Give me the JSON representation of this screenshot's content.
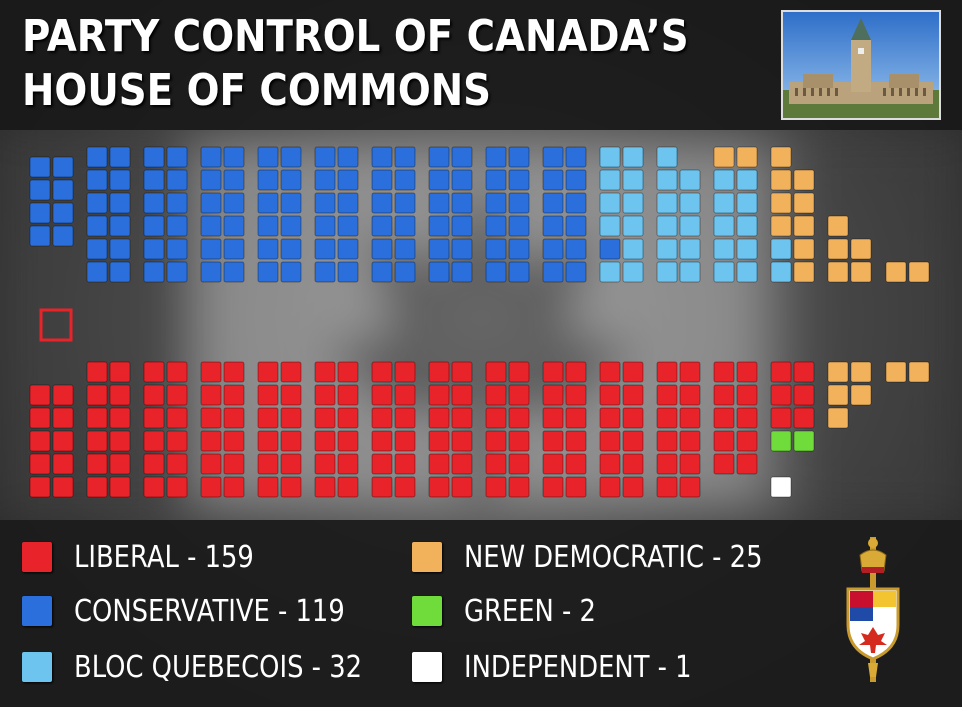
{
  "title": {
    "line1": "PARTY CONTROL OF CANADA’S",
    "line2": "HOUSE OF COMMONS"
  },
  "colors": {
    "liberal": "#e8232a",
    "conservative": "#2a6fdb",
    "bloc": "#6cc4ef",
    "ndp": "#f2b25c",
    "green": "#6fdc3b",
    "independent": "#ffffff",
    "speaker_outline": "#e8232a"
  },
  "chart_data": {
    "type": "seat-chart",
    "title": "PARTY CONTROL OF CANADA’S HOUSE OF COMMONS",
    "total_seats": 338,
    "parties": [
      {
        "name": "LIBERAL",
        "seats": 159,
        "color": "#e8232a"
      },
      {
        "name": "CONSERVATIVE",
        "seats": 119,
        "color": "#2a6fdb"
      },
      {
        "name": "BLOC QUEBECOIS",
        "seats": 32,
        "color": "#6cc4ef"
      },
      {
        "name": "NEW DEMOCRATIC",
        "seats": 25,
        "color": "#f2b25c"
      },
      {
        "name": "GREEN",
        "seats": 2,
        "color": "#6fdc3b"
      },
      {
        "name": "INDEPENDENT",
        "seats": 1,
        "color": "#ffffff"
      }
    ],
    "speaker_chair": 1
  },
  "legend": [
    {
      "label": "LIBERAL - 159",
      "color": "#e8232a"
    },
    {
      "label": "CONSERVATIVE - 119",
      "color": "#2a6fdb"
    },
    {
      "label": "BLOC QUEBECOIS - 32",
      "color": "#6cc4ef"
    },
    {
      "label": "NEW DEMOCRATIC - 25",
      "color": "#f2b25c"
    },
    {
      "label": "GREEN - 2",
      "color": "#6fdc3b"
    },
    {
      "label": "INDEPENDENT - 1",
      "color": "#ffffff"
    }
  ],
  "icons": {
    "photo": "parliament-peace-tower-photo",
    "crest": "house-of-commons-mace-crest"
  }
}
